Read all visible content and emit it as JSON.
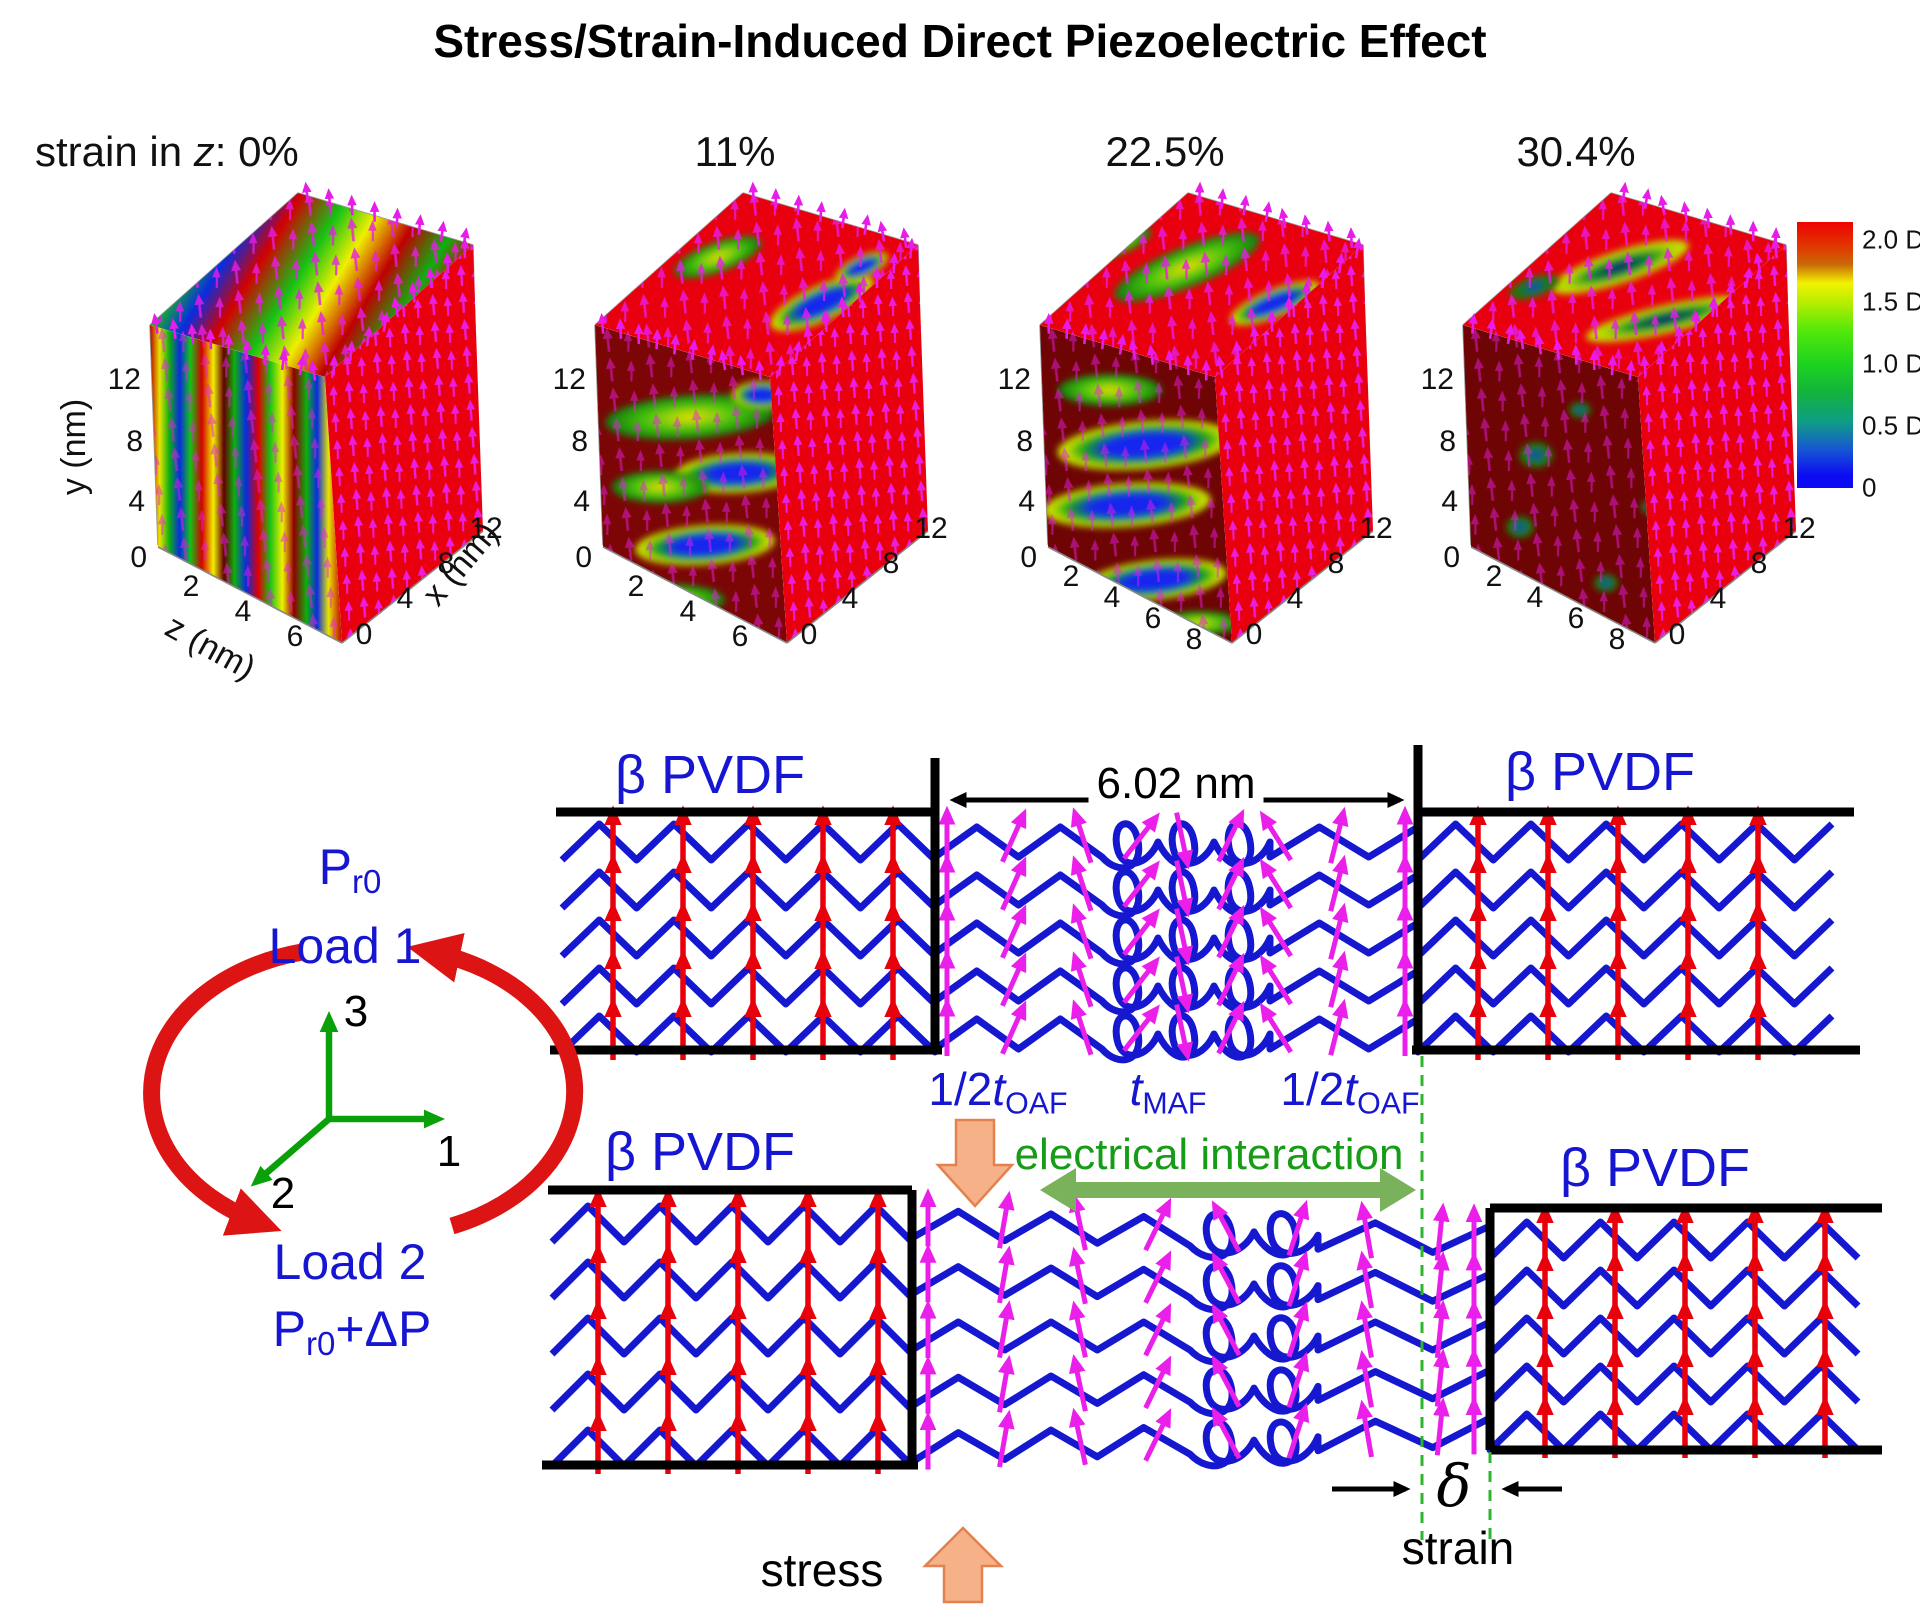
{
  "title": "Stress/Strain-Induced Direct Piezoelectric Effect",
  "strain_header": {
    "prefix": "strain in ",
    "z": "z",
    "sep": ": "
  },
  "plots": [
    {
      "strain_label": "0%",
      "y_ticks": [
        "12",
        "8",
        "4",
        "0"
      ],
      "z_ticks": [
        "2",
        "4",
        "6"
      ],
      "x_ticks": [
        "0",
        "4",
        "8",
        "12"
      ],
      "y_title": "y (nm)",
      "z_title": "z (nm)",
      "x_title": "x (nm)",
      "front": "chaotic",
      "top": "chaotic"
    },
    {
      "strain_label": "11%",
      "y_ticks": [
        "12",
        "8",
        "4",
        "0"
      ],
      "z_ticks": [
        "2",
        "4",
        "6"
      ],
      "x_ticks": [
        "0",
        "4",
        "8",
        "12"
      ],
      "front": "bands",
      "top": "patches"
    },
    {
      "strain_label": "22.5%",
      "y_ticks": [
        "12",
        "8",
        "4",
        "0"
      ],
      "z_ticks": [
        "2",
        "4",
        "6",
        "8"
      ],
      "x_ticks": [
        "0",
        "4",
        "8",
        "12"
      ],
      "front": "blobs",
      "top": "patches2"
    },
    {
      "strain_label": "30.4%",
      "y_ticks": [
        "12",
        "8",
        "4",
        "0"
      ],
      "z_ticks": [
        "2",
        "4",
        "6",
        "8"
      ],
      "x_ticks": [
        "0",
        "4",
        "8",
        "12"
      ],
      "front": "spots",
      "top": "islands"
    }
  ],
  "colorbar": {
    "labels": [
      "2.0 D",
      "1.5 D",
      "1.0 D",
      "0.5 D",
      "0"
    ]
  },
  "schematic": {
    "beta_pvdf": "β PVDF",
    "gap_width": "6.02 nm",
    "half": "1/2",
    "t": "t",
    "oaf": "OAF",
    "maf": "MAF",
    "electrical_interaction": "electrical interaction",
    "p": "P",
    "r0": "r0",
    "plus_dp": "+ΔP",
    "load1": "Load 1",
    "load2": "Load 2",
    "axis1": "1",
    "axis2": "2",
    "axis3": "3",
    "stress": "stress",
    "strain": "strain",
    "delta": "δ"
  },
  "colors": {
    "label_blue": "#1616d2",
    "chain_blue": "#1618cf",
    "dipole_red": "#e8000b",
    "amorphous_magenta": "#ea20ea",
    "interaction_green": "#169c16",
    "arrow_green_fill": "#79b25a",
    "dashed_green": "#2db52d",
    "axes_green": "#0aa00a",
    "cycle_red": "#dc1414",
    "stress_orange": "#f7b189",
    "surface_red": "#e8000e",
    "surface_dark_red": "#6e0404"
  },
  "chart_data": {
    "type": "3d-surface-series",
    "title": "Stress/Strain-Induced Direct Piezoelectric Effect",
    "series_variable": "strain in z",
    "strains_z": [
      "0%",
      "11%",
      "22.5%",
      "30.4%"
    ],
    "colorbar": {
      "unit": "D",
      "min": 0,
      "max": 2.0,
      "ticks": [
        2.0,
        1.5,
        1.0,
        0.5,
        0
      ]
    },
    "axes": {
      "x": {
        "label": "x (nm)",
        "ticks": [
          0,
          4,
          8,
          12
        ]
      },
      "y": {
        "label": "y (nm)",
        "ticks": [
          0,
          4,
          8,
          12
        ]
      },
      "z": {
        "label": "z (nm)",
        "ticks_low_strain": [
          2,
          4,
          6
        ],
        "ticks_high_strain": [
          2,
          4,
          6,
          8
        ]
      }
    },
    "schematic_values": {
      "amorphous_gap": "6.02 nm"
    }
  }
}
